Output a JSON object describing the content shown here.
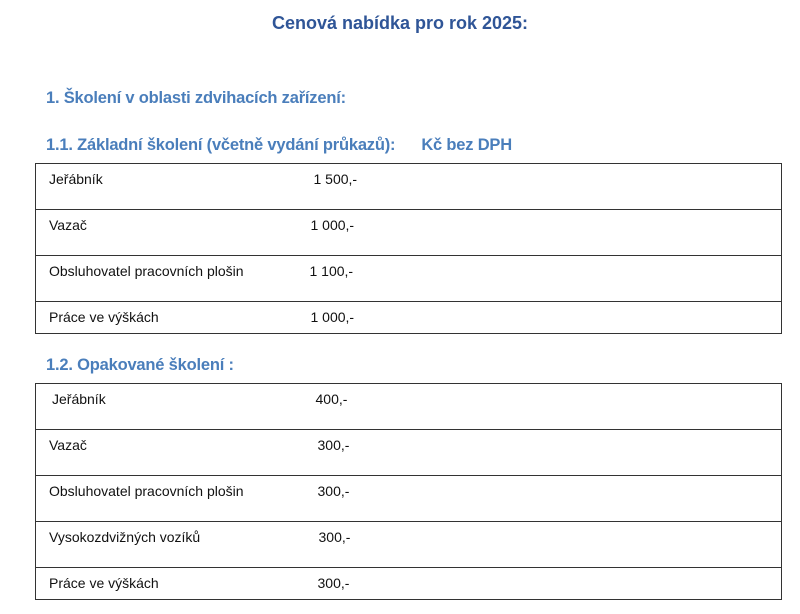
{
  "title": "Cenová nabídka  pro rok 2025:",
  "section1": {
    "heading": "1. Školení v  oblasti zdvihacích zařízení:"
  },
  "basic": {
    "heading": "1.1. Základní školení (včetně vydání průkazů):",
    "unit": "Kč bez DPH",
    "rows": [
      {
        "name": "Jeřábník",
        "price": "1 500,-"
      },
      {
        "name": "Vazač",
        "price": "1 000,-"
      },
      {
        "name": "Obsluhovatel pracovních plošin",
        "price": "1 100,-"
      },
      {
        "name": "Práce ve výškách",
        "price": "1 000,-"
      }
    ]
  },
  "repeat": {
    "heading": "1.2. Opakované školení :",
    "rows": [
      {
        "name": "Jeřábník",
        "price": "400,-"
      },
      {
        "name": "Vazač",
        "price": "300,-"
      },
      {
        "name": "Obsluhovatel pracovních plošin",
        "price": "300,-"
      },
      {
        "name": "Vysokozdvižných vozíků",
        "price": "300,-"
      },
      {
        "name": "Práce ve výškách",
        "price": "300,-"
      }
    ]
  }
}
